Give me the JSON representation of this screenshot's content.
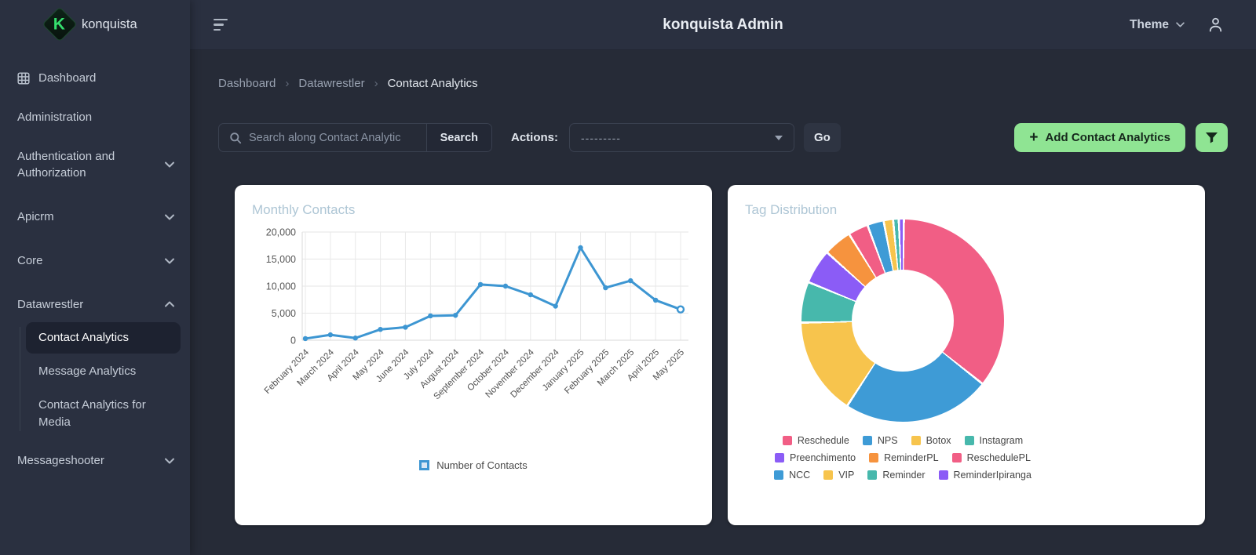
{
  "app": {
    "brand": "konquista",
    "admin_title": "konquista Admin",
    "theme_label": "Theme"
  },
  "sidebar": {
    "items": [
      {
        "label": "Dashboard",
        "icon": "grid"
      },
      {
        "label": "Administration"
      },
      {
        "label": "Authentication and Authorization",
        "chevron": "down"
      },
      {
        "label": "Apicrm",
        "chevron": "down"
      },
      {
        "label": "Core",
        "chevron": "down"
      },
      {
        "label": "Datawrestler",
        "chevron": "up",
        "children": [
          {
            "label": "Contact Analytics",
            "active": true
          },
          {
            "label": "Message Analytics"
          },
          {
            "label": "Contact Analytics for Media"
          }
        ]
      },
      {
        "label": "Messageshooter",
        "chevron": "down"
      }
    ]
  },
  "breadcrumb": {
    "separator": "›",
    "items": [
      "Dashboard",
      "Datawrestler",
      "Contact Analytics"
    ]
  },
  "toolbar": {
    "search_placeholder": "Search along Contact Analytic",
    "search_button": "Search",
    "actions_label": "Actions:",
    "actions_value": "---------",
    "go_button": "Go",
    "add_plus": "+",
    "add_button": "Add Contact Analytics"
  },
  "colors": {
    "accent_green": "#8fe493",
    "line_blue": "#3d96d2"
  },
  "chart_data": [
    {
      "type": "line",
      "title": "Monthly Contacts",
      "legend_label": "Number of Contacts",
      "legend_position": "bottom",
      "grid": true,
      "line_color": "#3d96d2",
      "ylim": [
        0,
        20000
      ],
      "yticks": [
        0,
        5000,
        10000,
        15000,
        20000
      ],
      "x": [
        "February 2024",
        "March 2024",
        "April 2024",
        "May 2024",
        "June 2024",
        "July 2024",
        "August 2024",
        "September 2024",
        "October 2024",
        "November 2024",
        "December 2024",
        "January 2025",
        "February 2025",
        "March 2025",
        "April 2025",
        "May 2025"
      ],
      "values": [
        300,
        1000,
        400,
        2000,
        2400,
        4500,
        4600,
        10300,
        10000,
        8400,
        6300,
        17100,
        9700,
        11000,
        7400,
        5700
      ]
    },
    {
      "type": "doughnut",
      "title": "Tag Distribution",
      "legend_position": "bottom",
      "slices": [
        {
          "label": "Reschedule",
          "value": 35.5,
          "color": "#F15E85"
        },
        {
          "label": "NPS",
          "value": 23.5,
          "color": "#3E9BD6"
        },
        {
          "label": "Botox",
          "value": 15.5,
          "color": "#F7C44D"
        },
        {
          "label": "Instagram",
          "value": 6.5,
          "color": "#47B8AC"
        },
        {
          "label": "Preenchimento",
          "value": 5.5,
          "color": "#8B5CF6"
        },
        {
          "label": "ReminderPL",
          "value": 4.5,
          "color": "#F6933E"
        },
        {
          "label": "ReschedulePL",
          "value": 3.2,
          "color": "#F15E85"
        },
        {
          "label": "NCC",
          "value": 2.6,
          "color": "#3E9BD6"
        },
        {
          "label": "VIP",
          "value": 1.5,
          "color": "#F7C44D"
        },
        {
          "label": "Reminder",
          "value": 0.9,
          "color": "#47B8AC"
        },
        {
          "label": "ReminderIpiranga",
          "value": 0.8,
          "color": "#8B5CF6"
        }
      ],
      "legend_rows": [
        [
          0,
          1,
          2,
          3
        ],
        [
          4,
          5,
          6
        ],
        [
          7,
          8,
          9,
          10
        ]
      ]
    }
  ]
}
